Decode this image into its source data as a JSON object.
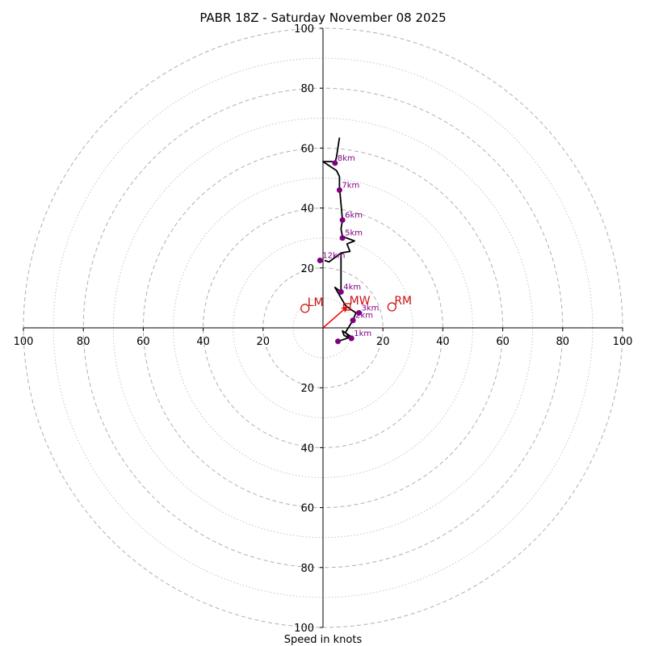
{
  "chart_data": {
    "type": "hodograph",
    "title": "PABR 18Z - Saturday November 08 2025",
    "xlabel": "Speed in knots",
    "units": "knots",
    "max_speed": 100,
    "dashed_rings": [
      20,
      40,
      60,
      80,
      100
    ],
    "dotted_rings": [
      10,
      30,
      50,
      70,
      90
    ],
    "x_ticks": [
      {
        "value": -100,
        "label": "100"
      },
      {
        "value": -80,
        "label": "80"
      },
      {
        "value": -60,
        "label": "60"
      },
      {
        "value": -40,
        "label": "40"
      },
      {
        "value": -20,
        "label": "20"
      },
      {
        "value": 20,
        "label": "20"
      },
      {
        "value": 40,
        "label": "40"
      },
      {
        "value": 60,
        "label": "60"
      },
      {
        "value": 80,
        "label": "80"
      },
      {
        "value": 100,
        "label": "100"
      }
    ],
    "y_ticks": [
      {
        "value": 100,
        "label": "100"
      },
      {
        "value": 80,
        "label": "80"
      },
      {
        "value": 60,
        "label": "60"
      },
      {
        "value": 40,
        "label": "40"
      },
      {
        "value": 20,
        "label": "20"
      },
      {
        "value": -20,
        "label": "20"
      },
      {
        "value": -40,
        "label": "40"
      },
      {
        "value": -60,
        "label": "60"
      },
      {
        "value": -80,
        "label": "80"
      },
      {
        "value": -100,
        "label": "100"
      }
    ],
    "hodograph_line": {
      "color": "#000000",
      "points": [
        [
          5,
          -4.5
        ],
        [
          9.5,
          -3
        ],
        [
          6.5,
          -1
        ],
        [
          7,
          -2.5
        ],
        [
          9,
          -3.5
        ],
        [
          7.5,
          -1.5
        ],
        [
          10,
          2.5
        ],
        [
          11,
          5
        ],
        [
          9.5,
          6
        ],
        [
          7.5,
          7.5
        ],
        [
          6,
          10
        ],
        [
          4,
          13.5
        ],
        [
          6,
          12
        ],
        [
          6,
          18
        ],
        [
          6,
          25
        ],
        [
          9,
          25.5
        ],
        [
          8,
          28
        ],
        [
          10.5,
          29
        ],
        [
          6.5,
          30.5
        ],
        [
          6,
          33
        ],
        [
          6.5,
          36
        ],
        [
          5.5,
          47
        ],
        [
          5.5,
          50.5
        ],
        [
          4.5,
          52.5
        ],
        [
          0,
          55.5
        ],
        [
          3,
          55.5
        ],
        [
          4,
          55
        ],
        [
          4.5,
          57
        ],
        [
          5.5,
          63.5
        ]
      ]
    },
    "branch_line": {
      "color": "#000000",
      "points": [
        [
          6,
          25
        ],
        [
          2,
          22
        ],
        [
          0.5,
          22.5
        ]
      ]
    },
    "height_markers": [
      {
        "label": "1km",
        "u": 9.5,
        "v": -3.5
      },
      {
        "label": "2km",
        "u": 10,
        "v": 2.5
      },
      {
        "label": "3km",
        "u": 12,
        "v": 5
      },
      {
        "label": "4km",
        "u": 6,
        "v": 12
      },
      {
        "label": "5km",
        "u": 6.5,
        "v": 30
      },
      {
        "label": "6km",
        "u": 6.5,
        "v": 36
      },
      {
        "label": "7km",
        "u": 5.5,
        "v": 46
      },
      {
        "label": "8km",
        "u": 4,
        "v": 55
      },
      {
        "label": "12km",
        "u": -1,
        "v": 22.5
      }
    ],
    "surface_point": {
      "u": 5,
      "v": -4.5
    },
    "storm_motion": [
      {
        "label": "LM",
        "u": -6,
        "v": 6.5
      },
      {
        "label": "RM",
        "u": 23,
        "v": 7
      },
      {
        "label": "MW",
        "u": 8,
        "v": 7
      }
    ],
    "shear_vector": {
      "color": "#ff0000",
      "from": [
        0,
        0
      ],
      "to": [
        8,
        7
      ]
    },
    "colors": {
      "rings": "#b0b0b0",
      "axes": "#000000",
      "markers": "#800080",
      "motion": "#cc1111",
      "shear": "#ff0000"
    }
  }
}
